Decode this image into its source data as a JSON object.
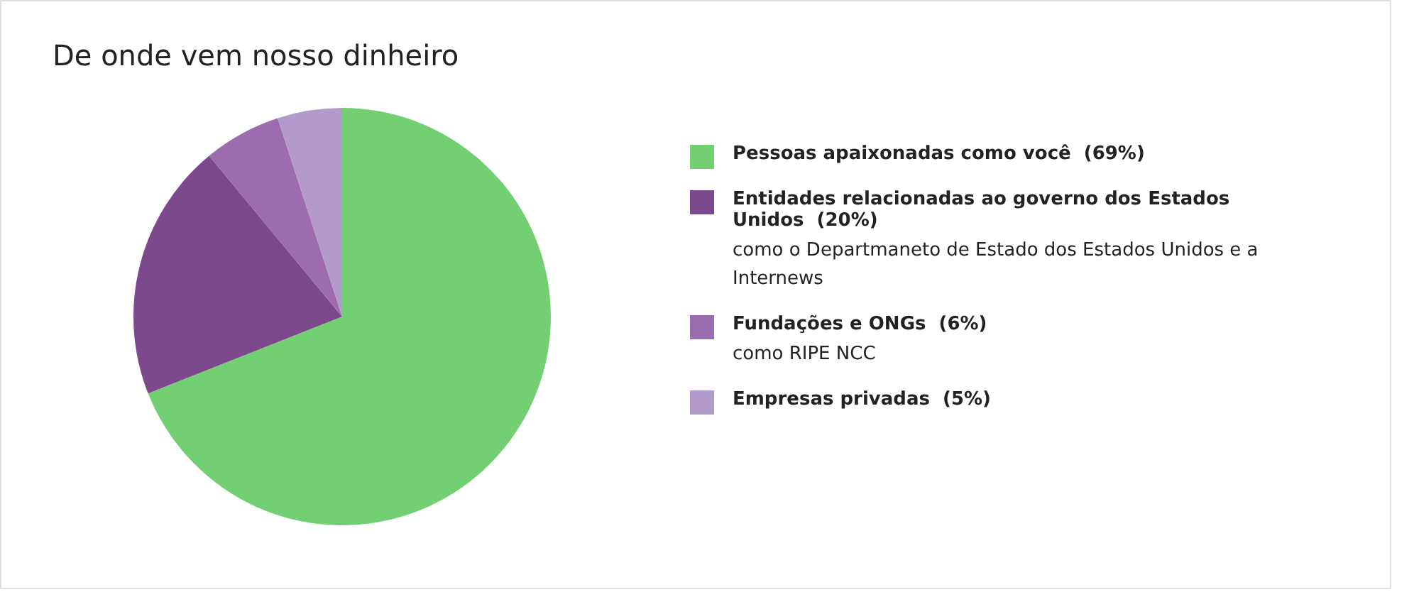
{
  "chart_data": {
    "type": "pie",
    "title": "De onde vem nosso dinheiro",
    "categories": [
      "Pessoas apaixonadas como você",
      "Entidades relacionadas ao governo dos Estados Unidos",
      "Fundações e ONGs",
      "Empresas privadas"
    ],
    "values": [
      69,
      20,
      6,
      5
    ],
    "value_labels": [
      "(69%)",
      "(20%)",
      "(6%)",
      "(5%)"
    ],
    "colors": [
      "#72cf72",
      "#7c4a8c",
      "#9c6cae",
      "#b29acb"
    ],
    "legend": "right",
    "annotations": [
      {
        "text": "como o Departmaneto de Estado dos Estados Unidos e a Internews",
        "x": "Entidades relacionadas ao governo dos Estados Unidos"
      },
      {
        "text": "como RIPE NCC",
        "x": "Fundações e ONGs"
      }
    ]
  }
}
